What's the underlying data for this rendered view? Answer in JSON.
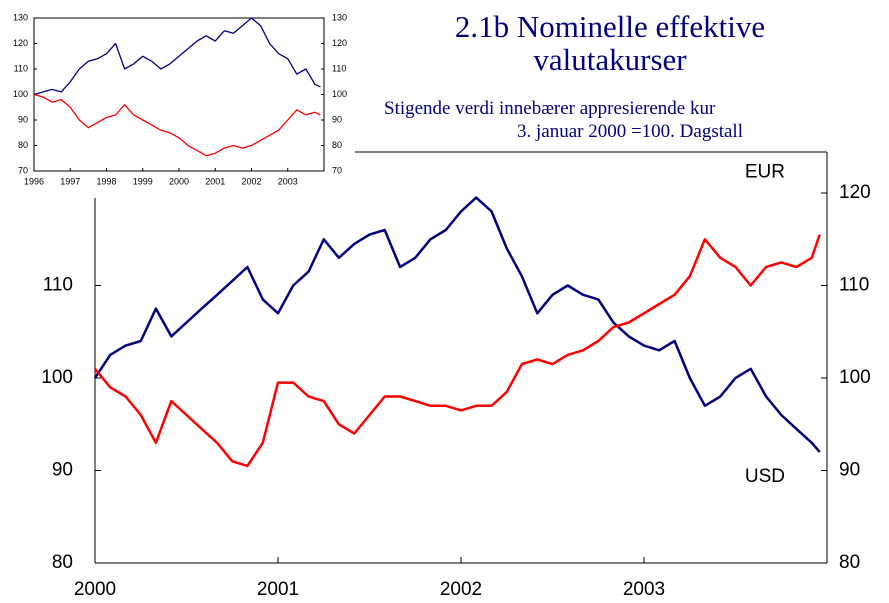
{
  "chart_data": [
    {
      "type": "line",
      "title": "2.1b Nominelle effektive valutakurser",
      "subtitle": "Stigende verdi innebærer appresierende kur",
      "note": "3. januar 2000 =100. Dagstall",
      "annotations": [
        {
          "text": "EUR",
          "series": 1
        },
        {
          "text": "USD",
          "series": 0
        }
      ],
      "x": [
        2000,
        2000.083,
        2000.167,
        2000.25,
        2000.333,
        2000.417,
        2000.5,
        2000.583,
        2000.667,
        2000.75,
        2000.833,
        2000.917,
        2001,
        2001.083,
        2001.167,
        2001.25,
        2001.333,
        2001.417,
        2001.5,
        2001.583,
        2001.667,
        2001.75,
        2001.833,
        2001.917,
        2002,
        2002.083,
        2002.167,
        2002.25,
        2002.333,
        2002.417,
        2002.5,
        2002.583,
        2002.667,
        2002.75,
        2002.833,
        2002.917,
        2003,
        2003.083,
        2003.167,
        2003.25,
        2003.333,
        2003.417,
        2003.5,
        2003.583,
        2003.667,
        2003.75,
        2003.833,
        2003.917,
        2003.96
      ],
      "series": [
        {
          "name": "USD",
          "color": "#000080",
          "values": [
            100,
            102.5,
            103.5,
            104,
            107.5,
            104.5,
            106,
            107.5,
            109,
            110.5,
            112,
            108.5,
            107,
            110,
            111.5,
            115,
            113,
            114.5,
            115.5,
            116,
            112,
            113,
            115,
            116,
            118,
            119.5,
            118,
            114,
            111,
            107,
            109,
            110,
            109,
            108.5,
            106,
            104.5,
            103.5,
            103,
            104,
            100,
            97,
            98,
            100,
            101,
            98,
            96,
            94.5,
            93,
            92
          ]
        },
        {
          "name": "EUR",
          "color": "#ff0000",
          "values": [
            101,
            99,
            98,
            96,
            93,
            97.5,
            96,
            94.5,
            93,
            91,
            90.5,
            93,
            99.5,
            99.5,
            98,
            97.5,
            95,
            94,
            96,
            98,
            98,
            97.5,
            97,
            97,
            96.5,
            97,
            97,
            98.5,
            101.5,
            102,
            101.5,
            102.5,
            103,
            104,
            105.5,
            106,
            107,
            108,
            109,
            111,
            115,
            113,
            112,
            110,
            112,
            112.5,
            112,
            113,
            115.5
          ]
        }
      ],
      "xlim": [
        2000,
        2004
      ],
      "xticks": [
        2000,
        2001,
        2002,
        2003
      ],
      "ylim": [
        80,
        120
      ],
      "yticks": [
        80,
        90,
        100,
        110
      ],
      "y2lim": [
        80,
        120
      ],
      "y2ticks": [
        80,
        90,
        100,
        110,
        120
      ]
    },
    {
      "type": "line",
      "x": [
        1996,
        1996.25,
        1996.5,
        1996.75,
        1997,
        1997.25,
        1997.5,
        1997.75,
        1998,
        1998.25,
        1998.5,
        1998.75,
        1999,
        1999.25,
        1999.5,
        1999.75,
        2000,
        2000.25,
        2000.5,
        2000.75,
        2001,
        2001.25,
        2001.5,
        2001.75,
        2002,
        2002.25,
        2002.5,
        2002.75,
        2003,
        2003.25,
        2003.5,
        2003.75,
        2003.9
      ],
      "series": [
        {
          "name": "USD",
          "color": "#000080",
          "values": [
            100,
            101,
            102,
            101,
            105,
            110,
            113,
            114,
            116,
            120,
            110,
            112,
            115,
            113,
            110,
            112,
            115,
            118,
            121,
            123,
            121,
            125,
            124,
            127,
            130,
            127,
            120,
            116,
            114,
            108,
            110,
            104,
            103
          ]
        },
        {
          "name": "EUR",
          "color": "#ff0000",
          "values": [
            100,
            99,
            97,
            98,
            95,
            90,
            87,
            89,
            91,
            92,
            96,
            92,
            90,
            88,
            86,
            85,
            83,
            80,
            78,
            76,
            77,
            79,
            80,
            79,
            80,
            82,
            84,
            86,
            90,
            94,
            92,
            93,
            92
          ]
        }
      ],
      "xlim": [
        1996,
        2004
      ],
      "xticks": [
        1996,
        1997,
        1998,
        1999,
        2000,
        2001,
        2002,
        2003
      ],
      "ylim": [
        70,
        130
      ],
      "yticks": [
        70,
        80,
        90,
        100,
        110,
        120,
        130
      ],
      "y2lim": [
        70,
        130
      ],
      "y2ticks": [
        70,
        80,
        90,
        100,
        110,
        120,
        130
      ]
    }
  ]
}
